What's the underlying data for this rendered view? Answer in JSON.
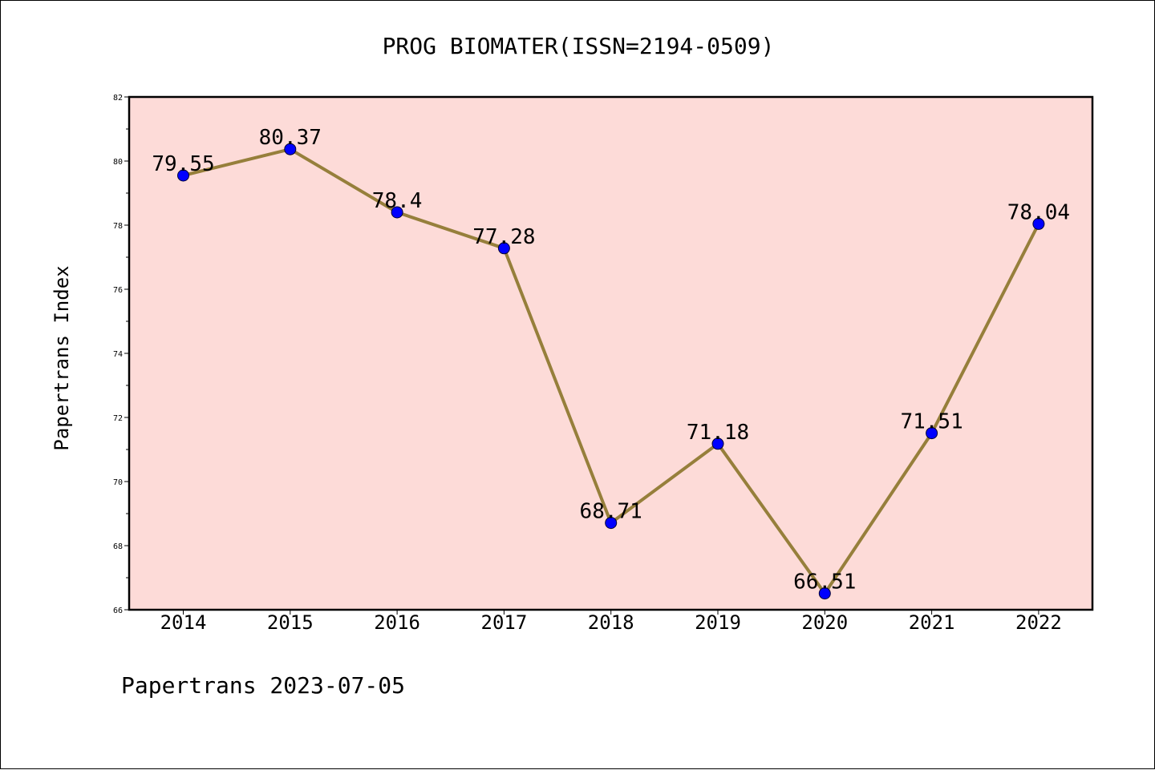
{
  "chart_data": {
    "type": "line",
    "title": "PROG BIOMATER(ISSN=2194-0509)",
    "ylabel": "Papertrans Index",
    "xlabel": "",
    "x": [
      "2014",
      "2015",
      "2016",
      "2017",
      "2018",
      "2019",
      "2020",
      "2021",
      "2022"
    ],
    "series": [
      {
        "values": [
          79.55,
          80.37,
          78.4,
          77.28,
          68.71,
          71.18,
          66.51,
          71.51,
          78.04
        ]
      }
    ],
    "data_labels": [
      "79.55",
      "80.37",
      "78.4",
      "77.28",
      "68.71",
      "71.18",
      "66.51",
      "71.51",
      "78.04"
    ],
    "ylim": [
      66,
      82
    ],
    "yticks": [
      "66",
      "68",
      "70",
      "72",
      "74",
      "76",
      "78",
      "80",
      "82"
    ],
    "grid": false,
    "colors": {
      "plot_bg": "#fddbd8",
      "line": "#967f3b",
      "marker": "#0000ff",
      "axis": "#000000"
    }
  },
  "footer": "Papertrans 2023-07-05"
}
